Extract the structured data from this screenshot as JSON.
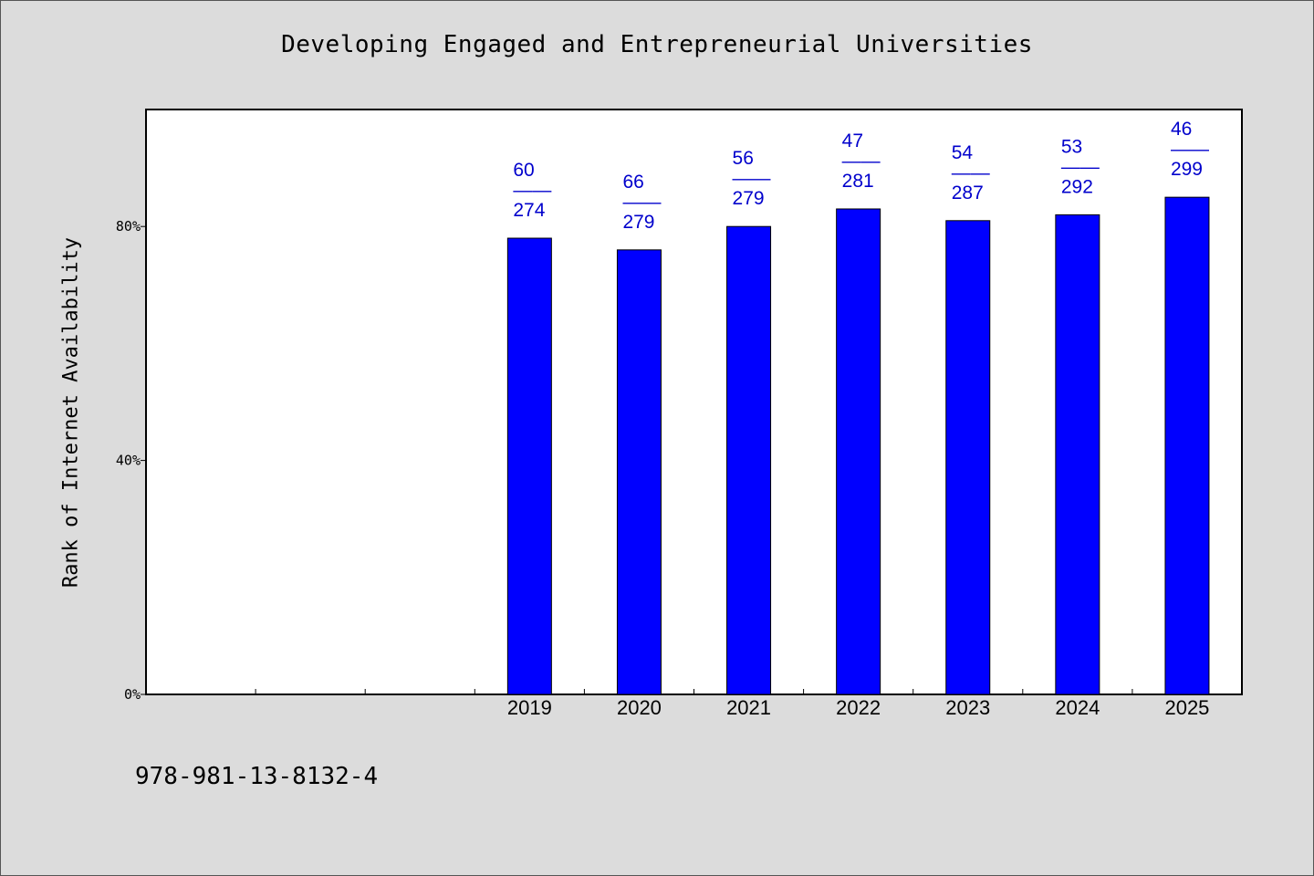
{
  "chart_data": {
    "type": "bar",
    "title": "Developing Engaged and Entrepreneurial Universities",
    "xlabel": "",
    "ylabel": "Rank of Internet Availability",
    "categories": [
      "",
      "",
      "",
      "2019",
      "2020",
      "2021",
      "2022",
      "2023",
      "2024",
      "2025"
    ],
    "values": [
      null,
      null,
      null,
      78,
      76,
      80,
      83,
      81,
      82,
      85
    ],
    "data_labels": [
      null,
      null,
      null,
      {
        "top": "60",
        "sep": "——",
        "bottom": "274"
      },
      {
        "top": "66",
        "sep": "——",
        "bottom": "279"
      },
      {
        "top": "56",
        "sep": "——",
        "bottom": "279"
      },
      {
        "top": "47",
        "sep": "——",
        "bottom": "281"
      },
      {
        "top": "54",
        "sep": "——",
        "bottom": "287"
      },
      {
        "top": "53",
        "sep": "——",
        "bottom": "292"
      },
      {
        "top": "46",
        "sep": "——",
        "bottom": "299"
      }
    ],
    "ylim": [
      0,
      100
    ],
    "yticks": [
      0,
      40,
      80
    ],
    "ytick_labels": [
      "0%",
      "40%",
      "80%"
    ],
    "grid": false,
    "colors": {
      "bar": "#0000ff",
      "label": "#0000cc",
      "background": "#dcdcdc",
      "plot": "#ffffff"
    }
  },
  "footer": "978-981-13-8132-4"
}
